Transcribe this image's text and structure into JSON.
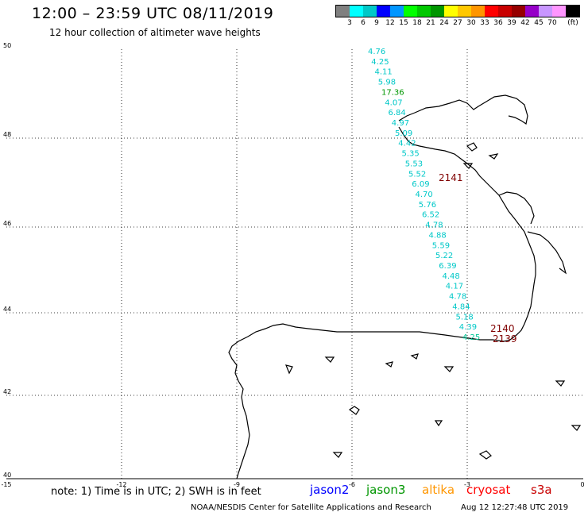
{
  "title": "12:00 – 23:59 UTC 08/11/2019",
  "subtitle": "12 hour collection of altimeter wave heights",
  "legend": {
    "unit": "(ft)",
    "colors": [
      "#808080",
      "#00ffff",
      "#00c8c8",
      "#0000ff",
      "#0096ff",
      "#00ff00",
      "#00c800",
      "#009600",
      "#ffff00",
      "#ffc800",
      "#ff9600",
      "#ff0000",
      "#c80000",
      "#960000",
      "#9600c8",
      "#c896ff",
      "#ff96ff",
      "#000000"
    ],
    "ticks": [
      "3",
      "6",
      "9",
      "12",
      "15",
      "18",
      "21",
      "24",
      "27",
      "30",
      "33",
      "36",
      "39",
      "42",
      "45",
      "70"
    ]
  },
  "axes": {
    "lon_ticks": [
      "-15",
      "-12",
      "-9",
      "-6",
      "-3",
      "0"
    ],
    "lat_ticks": [
      "50",
      "48",
      "46",
      "44",
      "42",
      "40"
    ]
  },
  "track_values": [
    {
      "v": "4.76",
      "c": "#00c8c8"
    },
    {
      "v": "4.25",
      "c": "#00c8c8"
    },
    {
      "v": "4.11",
      "c": "#00c8c8"
    },
    {
      "v": "5.98",
      "c": "#00c8c8"
    },
    {
      "v": "17.36",
      "c": "#009600"
    },
    {
      "v": "4.07",
      "c": "#00c8c8"
    },
    {
      "v": "6.84",
      "c": "#00c8c8"
    },
    {
      "v": "4.97",
      "c": "#00c8c8"
    },
    {
      "v": "5.09",
      "c": "#00c8c8"
    },
    {
      "v": "4.42",
      "c": "#00c8c8"
    },
    {
      "v": "5.35",
      "c": "#00c8c8"
    },
    {
      "v": "5.53",
      "c": "#00c8c8"
    },
    {
      "v": "5.52",
      "c": "#00c8c8"
    },
    {
      "v": "6.09",
      "c": "#00c8c8"
    },
    {
      "v": "4.70",
      "c": "#00c8c8"
    },
    {
      "v": "5.76",
      "c": "#00c8c8"
    },
    {
      "v": "6.52",
      "c": "#00c8c8"
    },
    {
      "v": "4.78",
      "c": "#00c8c8"
    },
    {
      "v": "4.88",
      "c": "#00c8c8"
    },
    {
      "v": "5.59",
      "c": "#00c8c8"
    },
    {
      "v": "5.22",
      "c": "#00c8c8"
    },
    {
      "v": "6.39",
      "c": "#00c8c8"
    },
    {
      "v": "4.48",
      "c": "#00c8c8"
    },
    {
      "v": "4.17",
      "c": "#00c8c8"
    },
    {
      "v": "4.78",
      "c": "#00c8c8"
    },
    {
      "v": "4.84",
      "c": "#00c8c8"
    },
    {
      "v": "5.18",
      "c": "#00c8c8"
    },
    {
      "v": "4.39",
      "c": "#00c8c8"
    },
    {
      "v": "4.25",
      "c": "#00c896"
    }
  ],
  "pass_labels": [
    {
      "v": "2141",
      "c": "#800000"
    },
    {
      "v": "2140",
      "c": "#800000"
    },
    {
      "v": "2139",
      "c": "#800000"
    }
  ],
  "note": "note: 1) Time is in UTC; 2) SWH is in feet",
  "satellites": [
    {
      "name": "jason2",
      "color": "#0000ff"
    },
    {
      "name": "jason3",
      "color": "#009600"
    },
    {
      "name": "altika",
      "color": "#ff9600"
    },
    {
      "name": "cryosat",
      "color": "#ff0000"
    },
    {
      "name": "s3a",
      "color": "#c80000"
    }
  ],
  "credit": "NOAA/NESDIS Center for Satellite Applications and Research",
  "generated": "Aug 12 12:27:48 UTC 2019"
}
